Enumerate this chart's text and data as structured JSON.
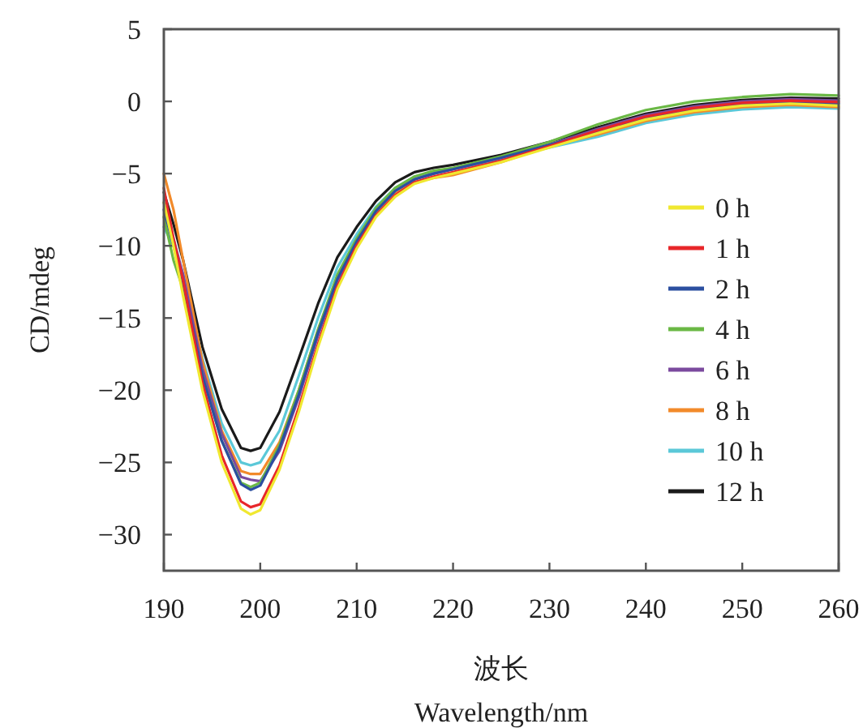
{
  "chart_data": {
    "type": "line",
    "xlabel": "波长 Wavelength/nm",
    "ylabel": "CD/mdeg",
    "x": [
      190,
      191,
      192,
      194,
      196,
      198,
      199,
      200,
      202,
      204,
      206,
      208,
      210,
      212,
      214,
      216,
      218,
      220,
      225,
      230,
      235,
      240,
      245,
      250,
      255,
      260
    ],
    "xlim": [
      190,
      260
    ],
    "xticks": [
      190,
      200,
      210,
      220,
      230,
      240,
      250,
      260
    ],
    "ylim": [
      -32.5,
      5
    ],
    "yticks": [
      -30,
      -25,
      -20,
      -15,
      -10,
      -5,
      0,
      5
    ],
    "grid": false,
    "legend": "right",
    "marker": "none",
    "line_style": "solid",
    "series": [
      {
        "name": "0 h",
        "color": "#f0e830",
        "values": [
          -7,
          -10,
          -13.5,
          -20,
          -25,
          -28.2,
          -28.6,
          -28.3,
          -25.5,
          -21.5,
          -17,
          -13,
          -10.2,
          -8,
          -6.6,
          -5.7,
          -5.3,
          -5,
          -4.2,
          -3.2,
          -2.2,
          -1.25,
          -0.65,
          -0.3,
          -0.15,
          -0.3
        ]
      },
      {
        "name": "1 h",
        "color": "#e8262a",
        "values": [
          -6,
          -9.5,
          -12.4,
          -19.5,
          -24.5,
          -27.7,
          -28.1,
          -27.9,
          -25.2,
          -21.2,
          -16.8,
          -12.8,
          -10,
          -7.9,
          -6.5,
          -5.6,
          -5.2,
          -4.9,
          -4.1,
          -3.1,
          -2,
          -1.05,
          -0.45,
          -0.1,
          0.05,
          -0.05
        ]
      },
      {
        "name": "2 h",
        "color": "#2b4fa0",
        "values": [
          -7.5,
          -10,
          -12.5,
          -19,
          -23.5,
          -26.5,
          -26.9,
          -26.6,
          -24,
          -20.3,
          -16,
          -12.3,
          -9.7,
          -7.6,
          -6.2,
          -5.4,
          -5,
          -4.7,
          -3.9,
          -3,
          -2.1,
          -1.15,
          -0.55,
          -0.2,
          -0.05,
          -0.15
        ]
      },
      {
        "name": "4 h",
        "color": "#6ab845",
        "values": [
          -8,
          -11,
          -13,
          -19,
          -23.5,
          -26.4,
          -26.7,
          -26.4,
          -23.8,
          -20,
          -15.8,
          -12,
          -9.5,
          -7.4,
          -6,
          -5.2,
          -4.8,
          -4.6,
          -3.8,
          -2.8,
          -1.6,
          -0.6,
          0,
          0.3,
          0.5,
          0.4
        ]
      },
      {
        "name": "6 h",
        "color": "#7b4a9e",
        "values": [
          -7,
          -9.5,
          -12,
          -18.5,
          -23,
          -26,
          -26.2,
          -26.3,
          -24.2,
          -20.5,
          -16.2,
          -12.4,
          -9.8,
          -7.6,
          -6.2,
          -5.4,
          -5,
          -4.7,
          -3.9,
          -3,
          -1.9,
          -0.95,
          -0.35,
          0,
          0.15,
          0.05
        ]
      },
      {
        "name": "8 h",
        "color": "#f28a2a",
        "values": [
          -5,
          -7.5,
          -11,
          -18,
          -22.8,
          -25.6,
          -25.8,
          -25.8,
          -23.6,
          -20,
          -15.8,
          -12.2,
          -9.7,
          -7.7,
          -6.4,
          -5.6,
          -5.3,
          -5.1,
          -4.2,
          -3.1,
          -2.3,
          -1.35,
          -0.75,
          -0.4,
          -0.25,
          -0.4
        ]
      },
      {
        "name": "10 h",
        "color": "#5bc8d8",
        "values": [
          -8.7,
          -10,
          -12,
          -17.8,
          -22.3,
          -25,
          -25.2,
          -25,
          -22.8,
          -19,
          -15,
          -11.5,
          -9.2,
          -7.3,
          -6,
          -5.2,
          -4.9,
          -4.7,
          -4,
          -3.2,
          -2.45,
          -1.5,
          -0.9,
          -0.55,
          -0.4,
          -0.5
        ]
      },
      {
        "name": "12 h",
        "color": "#1a1a1a",
        "values": [
          -6.3,
          -8.5,
          -11,
          -17,
          -21.3,
          -24,
          -24.2,
          -24,
          -21.5,
          -17.8,
          -14,
          -10.8,
          -8.7,
          -6.9,
          -5.6,
          -4.9,
          -4.6,
          -4.4,
          -3.7,
          -2.8,
          -1.8,
          -0.85,
          -0.25,
          0.1,
          0.25,
          0.2
        ]
      }
    ]
  }
}
